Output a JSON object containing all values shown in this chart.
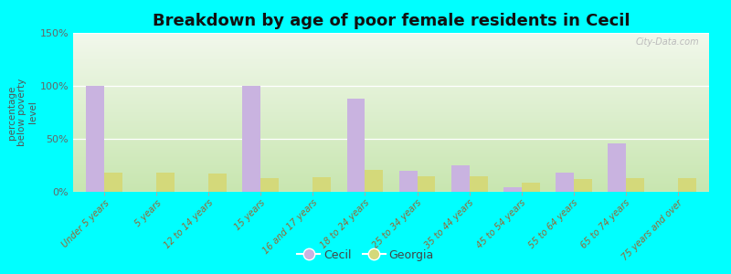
{
  "title": "Breakdown by age of poor female residents in Cecil",
  "categories": [
    "Under 5 years",
    "5 years",
    "12 to 14 years",
    "15 years",
    "16 and 17 years",
    "18 to 24 years",
    "25 to 34 years",
    "35 to 44 years",
    "45 to 54 years",
    "55 to 64 years",
    "65 to 74 years",
    "75 years and over"
  ],
  "cecil_values": [
    100,
    0,
    0,
    100,
    0,
    88,
    20,
    25,
    4,
    18,
    46,
    0
  ],
  "georgia_values": [
    18,
    18,
    17,
    13,
    14,
    21,
    15,
    15,
    9,
    12,
    13,
    13
  ],
  "cecil_color": "#c9b3e0",
  "georgia_color": "#d4d97a",
  "ylabel": "percentage\nbelow poverty\nlevel",
  "ylim": [
    0,
    150
  ],
  "yticks": [
    0,
    50,
    100,
    150
  ],
  "ytick_labels": [
    "0%",
    "50%",
    "100%",
    "150%"
  ],
  "background_color": "#00ffff",
  "title_fontsize": 13,
  "bar_width": 0.35,
  "legend_labels": [
    "Cecil",
    "Georgia"
  ],
  "watermark": "City-Data.com"
}
